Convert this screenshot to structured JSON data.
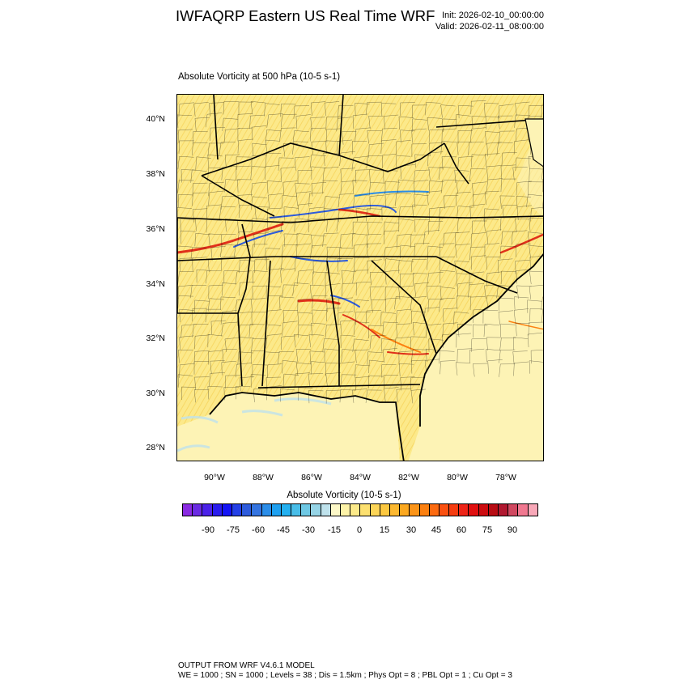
{
  "header": {
    "title": "IWFAQRP Eastern US Real Time WRF",
    "init": "Init: 2026-02-10_00:00:00",
    "valid": "Valid: 2026-02-11_08:00:00"
  },
  "map": {
    "subtitle": "Absolute Vorticity at 500 hPa   (10-5 s-1)",
    "lat_labels": [
      "40°N",
      "38°N",
      "36°N",
      "34°N",
      "32°N",
      "30°N",
      "28°N"
    ],
    "lon_labels": [
      "90°W",
      "88°W",
      "86°W",
      "84°W",
      "82°W",
      "80°W",
      "78°W"
    ],
    "background_color": "#fce98a",
    "ocean_color": "#fdf3b5"
  },
  "colorbar": {
    "title": "Absolute Vorticity  (10-5 s-1)",
    "labels": [
      "-90",
      "-75",
      "-60",
      "-45",
      "-30",
      "-15",
      "0",
      "15",
      "30",
      "45",
      "60",
      "75",
      "90"
    ],
    "colors": [
      "#8a2be2",
      "#6a2be2",
      "#4b22e8",
      "#2a1cee",
      "#1414f5",
      "#2440e6",
      "#2d5bdc",
      "#3474e0",
      "#2b8de8",
      "#1ea0f0",
      "#23b0f0",
      "#48bde8",
      "#6ec8e4",
      "#96d4e6",
      "#bfe2ec",
      "#fdf8c8",
      "#fdf3a8",
      "#fcea8a",
      "#fce070",
      "#fcd558",
      "#fcc840",
      "#fcb830",
      "#fca820",
      "#fc9418",
      "#fc8010",
      "#fc6a10",
      "#fa5010",
      "#f53c10",
      "#ee2418",
      "#e01010",
      "#cc0c10",
      "#b80c14",
      "#b01830",
      "#d04860",
      "#f07890",
      "#f8a8b8"
    ]
  },
  "footer": {
    "line1": "OUTPUT FROM WRF V4.6.1 MODEL",
    "line2": "WE = 1000 ; SN = 1000 ; Levels = 38 ; Dis = 1.5km ; Phys Opt = 8 ; PBL Opt = 1 ; Cu Opt = 3"
  }
}
